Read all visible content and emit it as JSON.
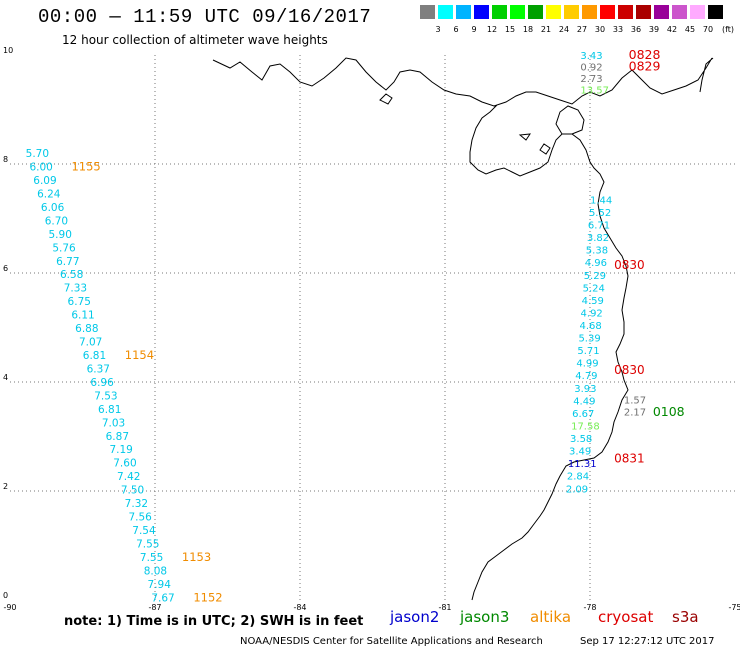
{
  "header": {
    "title": "00:00 — 11:59 UTC 09/16/2017",
    "subtitle": "12 hour collection of altimeter wave heights"
  },
  "legend": {
    "colors": [
      "#7f7f7f",
      "#00ffff",
      "#00b4ff",
      "#0000ff",
      "#00d000",
      "#00ff00",
      "#00a000",
      "#ffff00",
      "#ffcc00",
      "#ff9900",
      "#ff0000",
      "#cc0000",
      "#aa0000",
      "#990099",
      "#cc55cc",
      "#ffaaff",
      "#000000"
    ],
    "labels": [
      "3",
      "6",
      "9",
      "12",
      "15",
      "18",
      "21",
      "24",
      "27",
      "30",
      "33",
      "36",
      "39",
      "42",
      "45",
      "70"
    ],
    "unit": "(ft)"
  },
  "axes": {
    "x_ticks": [
      "-90",
      "-87",
      "-84",
      "-81",
      "-78",
      "-75"
    ],
    "y_ticks": [
      "0",
      "2",
      "4",
      "6",
      "8",
      "10"
    ]
  },
  "colors": {
    "cyan": "#00c8e8",
    "orange": "#f08c00",
    "red": "#dd0000",
    "green_light": "#77ee55",
    "green_dark": "#008800",
    "gray": "#707070",
    "blue": "#0000cc",
    "darkred": "#990000"
  },
  "track_west": {
    "values": [
      "5.70",
      "6.00",
      "6.09",
      "6.24",
      "6.06",
      "6.70",
      "5.90",
      "5.76",
      "6.77",
      "6.58",
      "7.33",
      "6.75",
      "6.11",
      "6.88",
      "7.07",
      "6.81",
      "6.37",
      "6.96",
      "7.53",
      "6.81",
      "7.03",
      "6.87",
      "7.19",
      "7.60",
      "7.42",
      "7.50",
      "7.32",
      "7.56",
      "7.54",
      "7.55",
      "7.55",
      "8.08",
      "7.94",
      "7.67"
    ],
    "times": [
      {
        "label": "1155",
        "index": 1
      },
      {
        "label": "1154",
        "index": 15
      },
      {
        "label": "1153",
        "index": 30
      },
      {
        "label": "1152",
        "index": 33
      }
    ]
  },
  "track_east": {
    "values": [
      "1.44",
      "5.52",
      "6.71",
      "3.82",
      "5.38",
      "4.96",
      "5.29",
      "5.24",
      "4.59",
      "4.92",
      "4.68",
      "5.39",
      "5.71",
      "4.99",
      "4.79",
      "3.93",
      "4.49",
      "6.67",
      "17.58",
      "3.58",
      "3.49",
      "11.31",
      "2.84",
      "2.09"
    ],
    "value_colors": [
      "cyan",
      "cyan",
      "cyan",
      "cyan",
      "cyan",
      "cyan",
      "cyan",
      "cyan",
      "cyan",
      "cyan",
      "cyan",
      "cyan",
      "cyan",
      "cyan",
      "cyan",
      "cyan",
      "cyan",
      "cyan",
      "green_light",
      "cyan",
      "cyan",
      "blue",
      "cyan",
      "cyan"
    ],
    "times": [
      {
        "label": "0830",
        "y": 6.15
      },
      {
        "label": "0830",
        "y": 4.22
      },
      {
        "label": "0831",
        "y": 2.6
      }
    ]
  },
  "top_right": {
    "values": [
      {
        "v": "3.43",
        "c": "cyan"
      },
      {
        "v": "0.92",
        "c": "gray"
      },
      {
        "v": "2.73",
        "c": "gray"
      },
      {
        "v": "13.57",
        "c": "green_light"
      }
    ],
    "times": [
      {
        "label": "0828",
        "y": 10.0
      },
      {
        "label": "0829",
        "y": 9.79
      }
    ]
  },
  "mid_right": {
    "values": [
      {
        "v": "1.57",
        "c": "gray"
      },
      {
        "v": "2.17",
        "c": "gray"
      }
    ],
    "time": "0108"
  },
  "satellites": [
    {
      "name": "jason2",
      "color": "#0000cc"
    },
    {
      "name": "jason3",
      "color": "#008800"
    },
    {
      "name": "altika",
      "color": "#f08c00"
    },
    {
      "name": "cryosat",
      "color": "#dd0000"
    },
    {
      "name": "s3a",
      "color": "#990000"
    }
  ],
  "note": "note:  1) Time is in UTC; 2) SWH is in feet",
  "footer": {
    "credit": "NOAA/NESDIS Center for Satellite Applications and Research",
    "generated": "Sep 17 12:27:12 UTC 2017"
  }
}
